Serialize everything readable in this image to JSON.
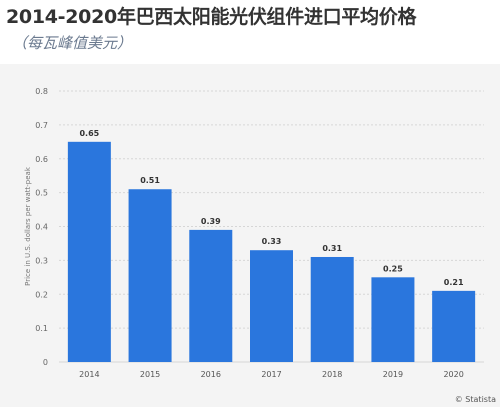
{
  "chart_data": {
    "type": "bar",
    "title": "2014-2020年巴西太阳能光伏组件进口平均价格",
    "subtitle": "（每瓦峰值美元）",
    "ylabel": "Price in U.S. dollars per watt-peak",
    "xlabel": "",
    "categories": [
      "2014",
      "2015",
      "2016",
      "2017",
      "2018",
      "2019",
      "2020"
    ],
    "values": [
      0.65,
      0.51,
      0.39,
      0.33,
      0.31,
      0.25,
      0.21
    ],
    "data_labels": [
      "0.65",
      "0.51",
      "0.39",
      "0.33",
      "0.31",
      "0.25",
      "0.21"
    ],
    "ylim": [
      0,
      0.8
    ],
    "yticks": [
      "0",
      "0.1",
      "0.2",
      "0.3",
      "0.4",
      "0.5",
      "0.6",
      "0.7",
      "0.8"
    ],
    "grid": true,
    "bar_color": "#2a76dd",
    "credit": "© Statista"
  }
}
